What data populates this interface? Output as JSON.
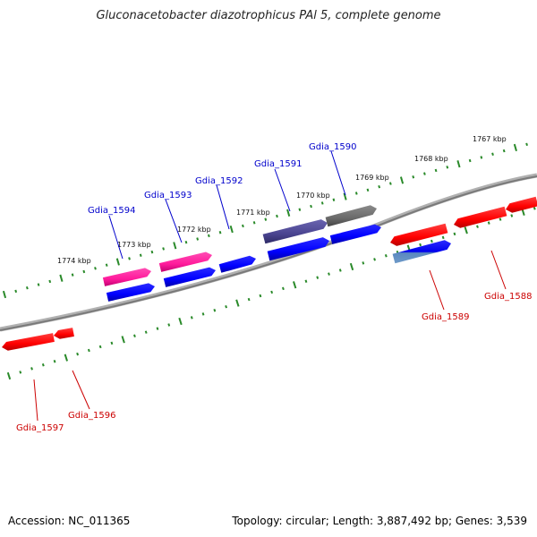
{
  "title": "Gluconacetobacter diazotrophicus PAl 5, complete genome",
  "footer": {
    "accession": "Accession: NC_011365",
    "info": "Topology: circular; Length: 3,887,492 bp; Genes: 3,539"
  },
  "colors": {
    "forward_gene": "#ff0000",
    "reverse_gene": "#0000ff",
    "pink_gene": "#ff1a9c",
    "selected_gene": "#6e6e6e",
    "blue_label": "#0000cc",
    "red_label": "#cc0000",
    "ticks": "#2a8a2a",
    "backbone": "#8a8a8a"
  },
  "kbp_labels": [
    "1767 kbp",
    "1768 kbp",
    "1769 kbp",
    "1770 kbp",
    "1771 kbp",
    "1772 kbp",
    "1773 kbp",
    "1774 kbp"
  ],
  "gene_labels_top": [
    "Gdia_1590",
    "Gdia_1591",
    "Gdia_1592",
    "Gdia_1593",
    "Gdia_1594"
  ],
  "gene_labels_bottom": [
    "Gdia_1588",
    "Gdia_1589",
    "Gdia_1596",
    "Gdia_1597"
  ]
}
